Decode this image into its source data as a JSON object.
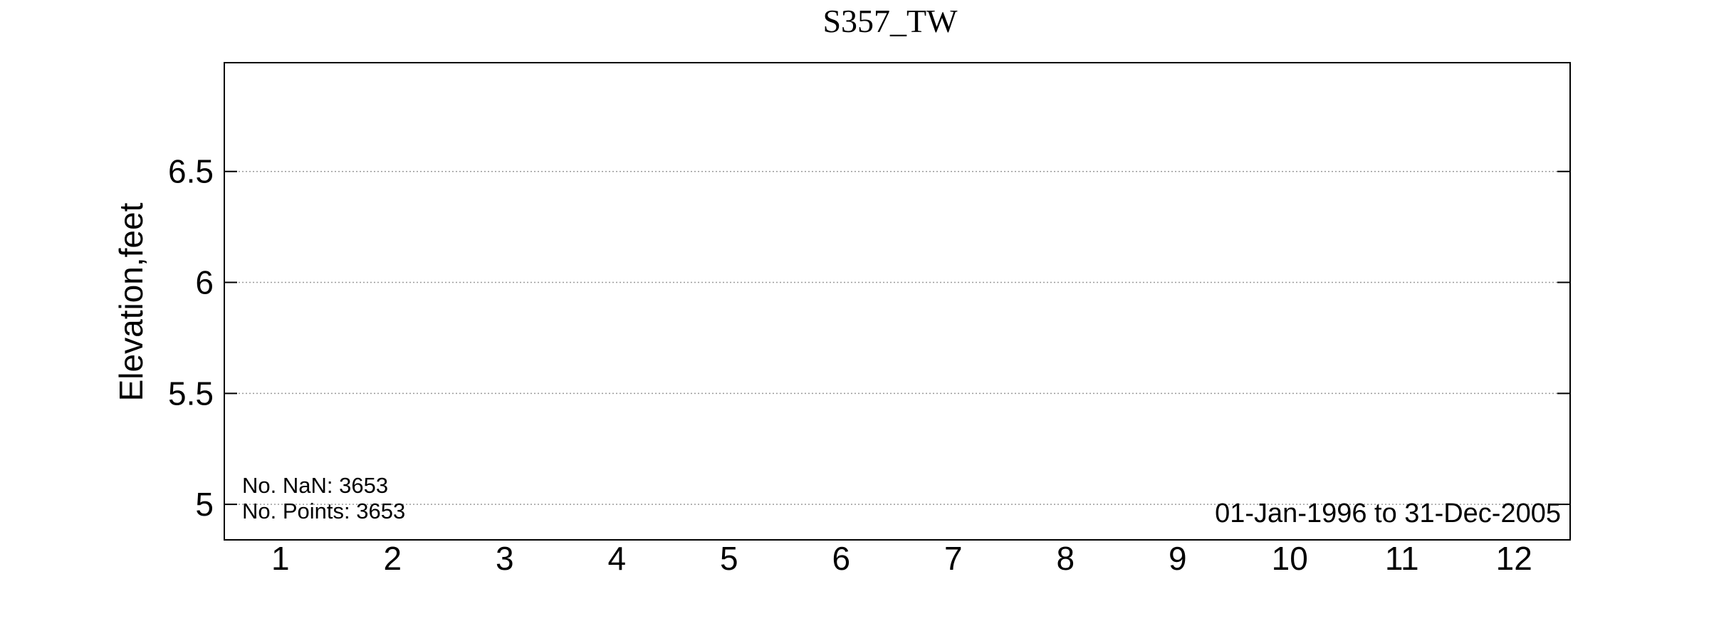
{
  "chart_data": {
    "type": "line",
    "title": "S357_TW",
    "xlabel": "",
    "ylabel": "Elevation,feet",
    "x_ticks": [
      "1",
      "2",
      "3",
      "4",
      "5",
      "6",
      "7",
      "8",
      "9",
      "10",
      "11",
      "12"
    ],
    "xlim": [
      0.5,
      12.5
    ],
    "y_ticks": [
      "5",
      "5.5",
      "6",
      "6.5"
    ],
    "y_tick_values": [
      5,
      5.5,
      6,
      6.5
    ],
    "ylim": [
      4.84,
      6.99
    ],
    "grid": "horizontal dotted",
    "series": [],
    "annotations": {
      "nan_count": "No. NaN: 3653",
      "point_count": "No. Points: 3653",
      "date_range": "01-Jan-1996 to 31-Dec-2005"
    }
  },
  "colors": {
    "axes": "#000000",
    "grid": "#9a9a9a",
    "background": "#ffffff"
  }
}
